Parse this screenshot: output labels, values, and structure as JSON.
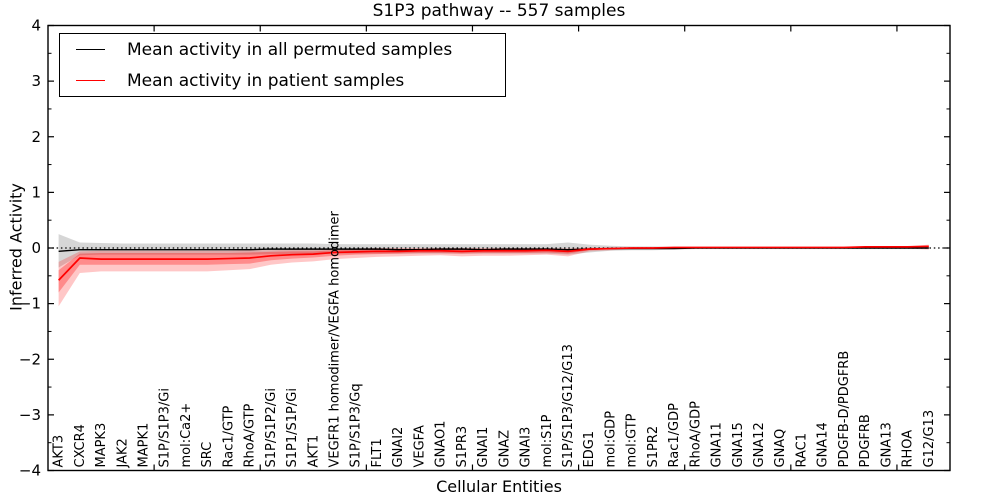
{
  "chart_data": {
    "type": "line",
    "title": "S1P3 pathway -- 557 samples",
    "xlabel": "Cellular Entities",
    "ylabel": "Inferred Activity",
    "ylim": [
      -4,
      4
    ],
    "yticks": [
      4,
      3,
      2,
      1,
      0,
      -1,
      -2,
      -3,
      -4
    ],
    "ytick_labels": [
      "4",
      "3",
      "2",
      "1",
      "0",
      "−1",
      "−2",
      "−3",
      "−4"
    ],
    "y_minor_tick_step": 0.5,
    "x_major_tick_values": [
      5,
      10,
      15,
      20,
      25,
      30,
      35,
      40
    ],
    "grid": false,
    "zero_reference_line": "dotted",
    "legend_position": "upper left",
    "colors": {
      "permuted_line": "#000000",
      "patient_line": "#ff0000",
      "permuted_band": "rgba(0,0,0,0.16)",
      "patient_band_outer": "rgba(255,0,0,0.22)",
      "patient_band_inner": "rgba(255,0,0,0.30)"
    },
    "categories": [
      "AKT3",
      "CXCR4",
      "MAPK3",
      "JAK2",
      "MAPK1",
      "S1P/S1P3/Gi",
      "mol:Ca2+",
      "SRC",
      "Rac1/GTP",
      "RhoA/GTP",
      "S1P/S1P2/Gi",
      "S1P1/S1P/Gi",
      "AKT1",
      "VEGFR1 homodimer/VEGFA homodimer",
      "S1P/S1P3/Gq",
      "FLT1",
      "GNAI2",
      "VEGFA",
      "GNAO1",
      "S1PR3",
      "GNAI1",
      "GNAZ",
      "GNAI3",
      "mol:S1P",
      "S1P/S1P3/G12/G13",
      "EDG1",
      "mol:GDP",
      "mol:GTP",
      "S1PR2",
      "Rac1/GDP",
      "RhoA/GDP",
      "GNA11",
      "GNA15",
      "GNA12",
      "GNAQ",
      "RAC1",
      "GNA14",
      "PDGFB-D/PDGFRB",
      "PDGFRB",
      "GNA13",
      "RHOA",
      "G12/G13"
    ],
    "series": [
      {
        "name": "Mean activity in all permuted samples",
        "color": "#000000",
        "values": [
          -0.06,
          -0.03,
          -0.03,
          -0.03,
          -0.03,
          -0.03,
          -0.03,
          -0.03,
          -0.03,
          -0.03,
          -0.02,
          -0.02,
          -0.02,
          -0.02,
          -0.02,
          -0.02,
          -0.03,
          -0.03,
          -0.02,
          -0.02,
          -0.03,
          -0.02,
          -0.02,
          -0.02,
          -0.03,
          -0.02,
          -0.01,
          -0.01,
          -0.01,
          -0.01,
          0,
          0,
          0,
          0,
          0,
          0,
          0,
          0,
          0,
          0,
          0,
          0
        ],
        "band_upper": [
          0.25,
          0.1,
          0.09,
          0.08,
          0.08,
          0.08,
          0.08,
          0.08,
          0.08,
          0.08,
          0.08,
          0.08,
          0.08,
          0.07,
          0.07,
          0.07,
          0.07,
          0.07,
          0.07,
          0.07,
          0.07,
          0.07,
          0.07,
          0.07,
          0.1,
          0.06,
          0.04,
          0.03,
          0.03,
          0.02,
          0.02,
          0.02,
          0.02,
          0.02,
          0.02,
          0.02,
          0.02,
          0.02,
          0.02,
          0.02,
          0.02,
          0.02
        ],
        "band_lower": [
          -0.35,
          -0.13,
          -0.12,
          -0.12,
          -0.12,
          -0.12,
          -0.12,
          -0.12,
          -0.12,
          -0.12,
          -0.11,
          -0.11,
          -0.11,
          -0.1,
          -0.1,
          -0.1,
          -0.1,
          -0.1,
          -0.1,
          -0.1,
          -0.1,
          -0.1,
          -0.1,
          -0.1,
          -0.12,
          -0.08,
          -0.05,
          -0.04,
          -0.04,
          -0.03,
          -0.02,
          -0.02,
          -0.02,
          -0.02,
          -0.02,
          -0.02,
          -0.02,
          -0.02,
          -0.02,
          -0.02,
          -0.02,
          -0.02
        ]
      },
      {
        "name": "Mean activity in patient samples",
        "color": "#ff0000",
        "values": [
          -0.58,
          -0.18,
          -0.2,
          -0.2,
          -0.2,
          -0.2,
          -0.2,
          -0.2,
          -0.19,
          -0.18,
          -0.14,
          -0.12,
          -0.11,
          -0.08,
          -0.07,
          -0.06,
          -0.06,
          -0.05,
          -0.05,
          -0.06,
          -0.05,
          -0.05,
          -0.05,
          -0.04,
          -0.06,
          -0.02,
          -0.01,
          0.0,
          0.0,
          0.01,
          0.01,
          0.01,
          0.01,
          0.01,
          0.01,
          0.01,
          0.01,
          0.01,
          0.02,
          0.02,
          0.02,
          0.03
        ],
        "band_upper": [
          -0.25,
          -0.06,
          -0.05,
          -0.05,
          -0.05,
          -0.05,
          -0.05,
          -0.05,
          -0.05,
          -0.04,
          -0.04,
          -0.03,
          -0.03,
          -0.02,
          -0.01,
          0.0,
          0.0,
          0.0,
          0.0,
          0.0,
          0.0,
          0.0,
          0.0,
          0.0,
          -0.01,
          0.01,
          0.01,
          0.01,
          0.01,
          0.02,
          0.02,
          0.02,
          0.02,
          0.02,
          0.02,
          0.02,
          0.02,
          0.02,
          0.03,
          0.03,
          0.03,
          0.06
        ],
        "band_lower": [
          -1.05,
          -0.45,
          -0.42,
          -0.42,
          -0.42,
          -0.42,
          -0.42,
          -0.42,
          -0.4,
          -0.38,
          -0.3,
          -0.26,
          -0.24,
          -0.2,
          -0.18,
          -0.16,
          -0.15,
          -0.14,
          -0.13,
          -0.15,
          -0.14,
          -0.14,
          -0.13,
          -0.12,
          -0.15,
          -0.06,
          -0.04,
          -0.02,
          -0.02,
          -0.01,
          -0.01,
          -0.01,
          -0.01,
          -0.01,
          -0.01,
          -0.01,
          -0.01,
          -0.01,
          -0.01,
          -0.01,
          -0.01,
          -0.03
        ],
        "inner_upper": [
          -0.4,
          -0.1,
          -0.09,
          -0.09,
          -0.09,
          -0.09,
          -0.09,
          -0.09,
          -0.09,
          -0.08,
          -0.07,
          -0.06,
          -0.06,
          -0.04,
          -0.03,
          -0.02,
          -0.02,
          -0.02,
          -0.02,
          -0.02,
          -0.02,
          -0.02,
          -0.02,
          -0.02,
          -0.03,
          0.0,
          0.0,
          0.01,
          0.01,
          0.01,
          0.01,
          0.01,
          0.01,
          0.01,
          0.01,
          0.01,
          0.01,
          0.01,
          0.02,
          0.02,
          0.02,
          0.04
        ],
        "inner_lower": [
          -0.8,
          -0.3,
          -0.3,
          -0.3,
          -0.3,
          -0.3,
          -0.3,
          -0.3,
          -0.29,
          -0.28,
          -0.22,
          -0.19,
          -0.17,
          -0.14,
          -0.12,
          -0.11,
          -0.1,
          -0.09,
          -0.09,
          -0.1,
          -0.09,
          -0.09,
          -0.09,
          -0.08,
          -0.1,
          -0.04,
          -0.02,
          -0.01,
          -0.01,
          0.0,
          0.0,
          0.0,
          0.0,
          0.0,
          0.0,
          0.0,
          0.0,
          0.0,
          0.01,
          0.01,
          0.01,
          0.01
        ]
      }
    ]
  }
}
